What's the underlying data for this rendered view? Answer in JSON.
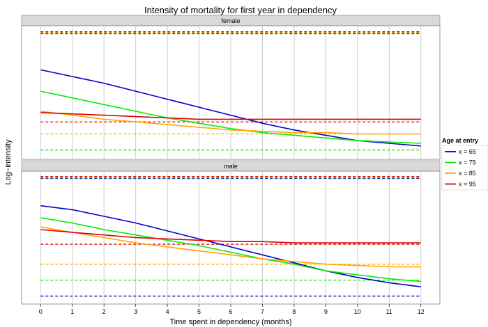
{
  "chart_data": {
    "type": "line",
    "title": "Intensity of mortality for first year in dependency",
    "xlabel": "Time spent in dependency (months)",
    "ylabel": "Log−intensity",
    "x_ticks": [
      0,
      1,
      2,
      3,
      4,
      5,
      6,
      7,
      8,
      9,
      10,
      11,
      12
    ],
    "xlim": [
      -0.6,
      12.6
    ],
    "grid": true,
    "legend": {
      "title": "Age at entry",
      "position": "right",
      "entries": [
        "x = 65",
        "x = 75",
        "x = 85",
        "x = 95"
      ]
    },
    "colors": {
      "x = 65": "#0000cc",
      "x = 75": "#00ee00",
      "x = 85": "#ffa500",
      "x = 95": "#dd0000"
    },
    "panels": [
      {
        "label": "female",
        "ylim": [
          0,
          1
        ],
        "series": [
          {
            "name": "x = 65",
            "x": [
              0,
              1,
              2,
              3,
              4,
              5,
              6,
              7,
              8,
              9,
              10,
              11,
              12
            ],
            "y": [
              0.67,
              0.62,
              0.57,
              0.51,
              0.45,
              0.39,
              0.33,
              0.27,
              0.22,
              0.18,
              0.14,
              0.12,
              0.1
            ]
          },
          {
            "name": "x = 75",
            "x": [
              0,
              1,
              2,
              3,
              4,
              5,
              6,
              7,
              8,
              9,
              10,
              11,
              12
            ],
            "y": [
              0.51,
              0.46,
              0.41,
              0.36,
              0.31,
              0.27,
              0.23,
              0.2,
              0.18,
              0.16,
              0.14,
              0.13,
              0.12
            ]
          },
          {
            "name": "x = 85",
            "x": [
              0,
              1,
              2,
              3,
              4,
              5,
              6,
              7,
              8,
              9,
              10,
              11,
              12
            ],
            "y": [
              0.36,
              0.33,
              0.3,
              0.28,
              0.26,
              0.24,
              0.22,
              0.21,
              0.2,
              0.2,
              0.19,
              0.19,
              0.19
            ]
          },
          {
            "name": "x = 95",
            "x": [
              0,
              1,
              2,
              3,
              4,
              5,
              6,
              7,
              8,
              9,
              10,
              11,
              12
            ],
            "y": [
              0.35,
              0.34,
              0.33,
              0.32,
              0.31,
              0.3,
              0.3,
              0.3,
              0.3,
              0.3,
              0.3,
              0.3,
              0.3
            ]
          }
        ],
        "reference_lines": [
          {
            "name": "x = 65",
            "levels": [
              -0.02,
              0.94
            ]
          },
          {
            "name": "x = 75",
            "levels": [
              0.07,
              0.945
            ]
          },
          {
            "name": "x = 85",
            "levels": [
              0.19,
              0.95
            ]
          },
          {
            "name": "x = 95",
            "levels": [
              0.28,
              0.955
            ]
          }
        ]
      },
      {
        "label": "male",
        "ylim": [
          0,
          1
        ],
        "series": [
          {
            "name": "x = 65",
            "x": [
              0,
              1,
              2,
              3,
              4,
              5,
              6,
              7,
              8,
              9,
              10,
              11,
              12
            ],
            "y": [
              0.74,
              0.71,
              0.66,
              0.61,
              0.55,
              0.49,
              0.43,
              0.37,
              0.31,
              0.25,
              0.2,
              0.16,
              0.13
            ]
          },
          {
            "name": "x = 75",
            "x": [
              0,
              1,
              2,
              3,
              4,
              5,
              6,
              7,
              8,
              9,
              10,
              11,
              12
            ],
            "y": [
              0.65,
              0.61,
              0.56,
              0.52,
              0.48,
              0.44,
              0.39,
              0.34,
              0.3,
              0.25,
              0.22,
              0.19,
              0.17
            ]
          },
          {
            "name": "x = 85",
            "x": [
              0,
              1,
              2,
              3,
              4,
              5,
              6,
              7,
              8,
              9,
              10,
              11,
              12
            ],
            "y": [
              0.58,
              0.54,
              0.5,
              0.46,
              0.43,
              0.4,
              0.37,
              0.34,
              0.32,
              0.3,
              0.29,
              0.28,
              0.28
            ]
          },
          {
            "name": "x = 95",
            "x": [
              0,
              1,
              2,
              3,
              4,
              5,
              6,
              7,
              8,
              9,
              10,
              11,
              12
            ],
            "y": [
              0.56,
              0.54,
              0.52,
              0.5,
              0.49,
              0.48,
              0.47,
              0.47,
              0.46,
              0.46,
              0.46,
              0.46,
              0.46
            ]
          }
        ],
        "reference_lines": [
          {
            "name": "x = 65",
            "levels": [
              0.06,
              0.945
            ]
          },
          {
            "name": "x = 75",
            "levels": [
              0.18,
              0.95
            ]
          },
          {
            "name": "x = 85",
            "levels": [
              0.3,
              0.955
            ]
          },
          {
            "name": "x = 95",
            "levels": [
              0.45,
              0.96
            ]
          }
        ]
      }
    ]
  }
}
